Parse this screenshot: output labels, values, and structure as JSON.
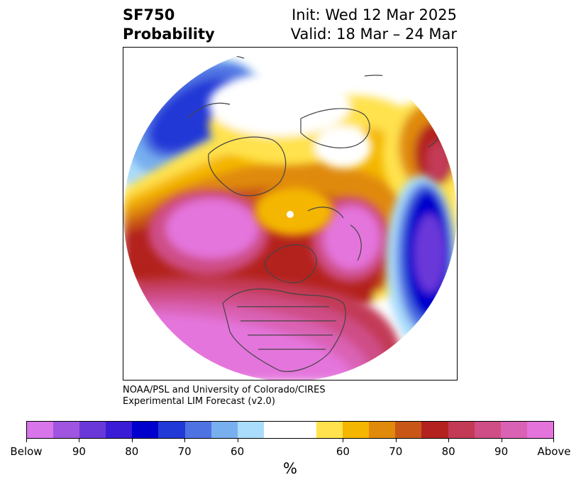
{
  "header": {
    "title_line1": "SF750",
    "title_line2": "Probability",
    "init": "Init: Wed 12 Mar 2025",
    "valid": "Valid: 18 Mar – 24 Mar"
  },
  "credit": {
    "line1": "NOAA/PSL and University of Colorado/CIRES",
    "line2": "Experimental LIM Forecast (v2.0)"
  },
  "colorbar": {
    "units": "%",
    "colors": [
      "#d875ea",
      "#9f55e0",
      "#6a38d9",
      "#3b1cd6",
      "#0000cc",
      "#2139d6",
      "#4f72e3",
      "#77afef",
      "#aadcfb",
      "#ffffff",
      "#ffffff",
      "#ffe24d",
      "#f4b600",
      "#e08a0c",
      "#c85717",
      "#b3221f",
      "#c33a57",
      "#cf4e86",
      "#da62b4",
      "#e474dc"
    ],
    "ticks": [
      {
        "label": "Below",
        "index": 0
      },
      {
        "label": "90",
        "index": 2
      },
      {
        "label": "80",
        "index": 4
      },
      {
        "label": "70",
        "index": 6
      },
      {
        "label": "60",
        "index": 8
      },
      {
        "label": "60",
        "index": 12
      },
      {
        "label": "70",
        "index": 14
      },
      {
        "label": "80",
        "index": 16
      },
      {
        "label": "90",
        "index": 18
      },
      {
        "label": "Above",
        "index": 20
      }
    ]
  }
}
